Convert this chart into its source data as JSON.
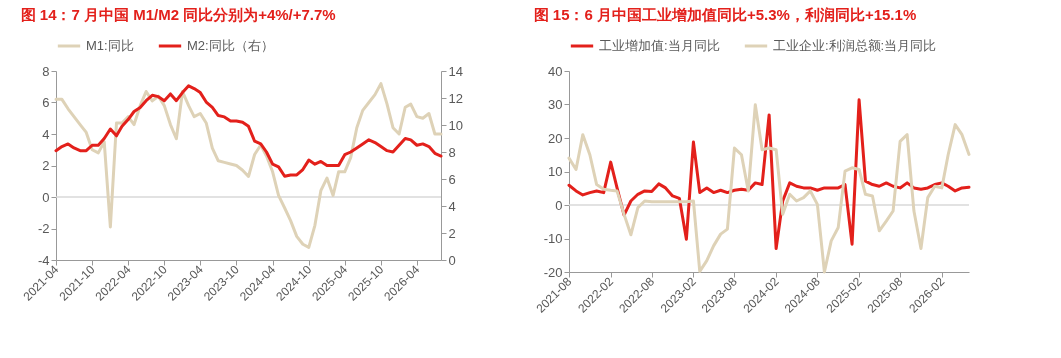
{
  "chart_data": [
    {
      "type": "line",
      "title": "图 14：7 月中国 M1/M2 同比分别为+4%/+7.7%",
      "legend": "top",
      "x": [
        "2021-04",
        "2021-05",
        "2021-06",
        "2021-07",
        "2021-08",
        "2021-09",
        "2021-10",
        "2021-11",
        "2021-12",
        "2022-01",
        "2022-02",
        "2022-03",
        "2022-04",
        "2022-05",
        "2022-06",
        "2022-07",
        "2022-08",
        "2022-09",
        "2022-10",
        "2022-11",
        "2022-12",
        "2023-01",
        "2023-02",
        "2023-03",
        "2023-04",
        "2023-05",
        "2023-06",
        "2023-07",
        "2023-08",
        "2023-09",
        "2023-10",
        "2023-11",
        "2023-12",
        "2024-01",
        "2024-02",
        "2024-03",
        "2024-04",
        "2024-05",
        "2024-06",
        "2024-07",
        "2024-08",
        "2024-09",
        "2024-10",
        "2024-11",
        "2024-12",
        "2025-01",
        "2025-02",
        "2025-03",
        "2025-04",
        "2025-05",
        "2025-06",
        "2025-07",
        "2025-08",
        "2025-09",
        "2025-10",
        "2025-11",
        "2025-12",
        "2026-01",
        "2026-02",
        "2026-03",
        "2026-04",
        "2026-05",
        "2026-06",
        "2026-07",
        "2026-08"
      ],
      "series": [
        {
          "name": "M1:同比",
          "color": "#ded2b7",
          "values": [
            6.2,
            6.2,
            5.6,
            5.1,
            4.6,
            4.1,
            3.0,
            2.8,
            3.5,
            -1.9,
            4.7,
            4.7,
            5.1,
            4.6,
            5.8,
            6.7,
            6.1,
            6.4,
            5.8,
            4.6,
            3.7,
            6.7,
            5.8,
            5.1,
            5.3,
            4.7,
            3.1,
            2.3,
            2.2,
            2.1,
            2.0,
            1.7,
            1.3,
            2.7,
            3.3,
            2.6,
            1.6,
            0.1,
            -0.7,
            -1.5,
            -2.5,
            -3.0,
            -3.2,
            -1.8,
            0.4,
            1.2,
            0.1,
            1.6,
            1.6,
            2.5,
            4.4,
            5.5,
            6.0,
            6.5,
            7.2,
            5.9,
            4.4,
            4.0,
            5.7,
            5.9,
            5.1,
            5.0,
            5.3,
            4.0,
            4.0
          ]
        },
        {
          "name": "M2:同比（右）",
          "color": "#e3201b",
          "axis": "y2",
          "values": [
            8.1,
            8.4,
            8.6,
            8.3,
            8.1,
            8.1,
            8.5,
            8.5,
            9.0,
            9.7,
            9.2,
            9.9,
            10.4,
            11.0,
            11.3,
            11.8,
            12.2,
            12.1,
            11.8,
            12.3,
            11.8,
            12.4,
            12.9,
            12.7,
            12.4,
            11.7,
            11.3,
            10.7,
            10.6,
            10.3,
            10.3,
            10.2,
            9.9,
            8.8,
            8.6,
            8.0,
            7.1,
            6.9,
            6.2,
            6.3,
            6.3,
            6.7,
            7.4,
            7.1,
            7.3,
            7.0,
            7.0,
            7.0,
            7.8,
            8.0,
            8.3,
            8.6,
            8.9,
            8.7,
            8.4,
            8.1,
            8.0,
            8.5,
            9.0,
            8.9,
            8.5,
            8.6,
            8.4,
            7.9,
            7.7
          ]
        }
      ],
      "xlim": [
        "2021-04",
        "2026-08"
      ],
      "xticks": [
        "2021-04",
        "2021-10",
        "2022-04",
        "2022-10",
        "2023-04",
        "2023-10",
        "2024-04",
        "2024-10",
        "2025-04",
        "2025-10",
        "2026-04"
      ],
      "ylim": [
        -4,
        8
      ],
      "yticks": [
        -4,
        -2,
        0,
        2,
        4,
        6,
        8
      ],
      "y2lim": [
        0,
        14
      ],
      "y2ticks": [
        0,
        2,
        4,
        6,
        8,
        10,
        12,
        14
      ],
      "ref_lines": [
        {
          "axis": "y",
          "value": 0,
          "color": "#d9d9d9"
        }
      ]
    },
    {
      "type": "line",
      "title": "图 15：6 月中国工业增加值同比+5.3%，利润同比+15.1%",
      "legend": "top",
      "x": [
        "2021-08",
        "2021-09",
        "2021-10",
        "2021-11",
        "2021-12",
        "2022-01",
        "2022-02",
        "2022-03",
        "2022-04",
        "2022-05",
        "2022-06",
        "2022-07",
        "2022-08",
        "2022-09",
        "2022-10",
        "2022-11",
        "2022-12",
        "2023-01",
        "2023-02",
        "2023-03",
        "2023-04",
        "2023-05",
        "2023-06",
        "2023-07",
        "2023-08",
        "2023-09",
        "2023-10",
        "2023-11",
        "2023-12",
        "2024-01",
        "2024-02",
        "2024-03",
        "2024-04",
        "2024-05",
        "2024-06",
        "2024-07",
        "2024-08",
        "2024-09",
        "2024-10",
        "2024-11",
        "2024-12",
        "2025-01",
        "2025-02",
        "2025-03",
        "2025-04",
        "2025-05",
        "2025-06",
        "2025-07",
        "2025-08",
        "2025-09",
        "2025-10",
        "2025-11",
        "2025-12",
        "2026-01",
        "2026-02",
        "2026-03",
        "2026-04",
        "2026-05",
        "2026-06"
      ],
      "series": [
        {
          "name": "工业增加值:当月同比",
          "color": "#e3201b",
          "values": [
            5.9,
            4.2,
            3.0,
            3.7,
            4.2,
            3.7,
            12.8,
            5.1,
            -3.0,
            1.2,
            3.2,
            4.2,
            4.0,
            6.3,
            5.1,
            2.7,
            2.0,
            -10.2,
            18.8,
            3.7,
            5.1,
            3.7,
            4.4,
            3.7,
            4.4,
            4.7,
            4.4,
            6.6,
            6.1,
            26.9,
            -13,
            1.2,
            6.6,
            5.6,
            5.1,
            5.1,
            4.4,
            5.1,
            5.1,
            5.1,
            6.1,
            -11.7,
            31.4,
            7.1,
            6.1,
            5.6,
            6.6,
            5.6,
            5.1,
            6.6,
            5.1,
            4.7,
            5.1,
            6.1,
            6.6,
            5.6,
            4.2,
            5.1,
            5.3
          ]
        },
        {
          "name": "工业企业:利润总额:当月同比",
          "color": "#ded2b7",
          "values": [
            14,
            10.6,
            21,
            15,
            6.1,
            4.7,
            4.4,
            4.2,
            -2.8,
            -8.9,
            -0.8,
            1.2,
            1,
            1,
            1,
            1,
            1,
            1,
            1.2,
            -19.8,
            -16.6,
            -12.2,
            -8.7,
            -7.2,
            17,
            15,
            4.2,
            29.9,
            16.5,
            17,
            16.5,
            -2.8,
            3.2,
            1.2,
            2.2,
            4.2,
            0.2,
            -20,
            -10.7,
            -6.7,
            10.1,
            11.1,
            10.6,
            3.2,
            2.7,
            -7.7,
            -4.8,
            -1.8,
            19,
            21,
            -1.8,
            -13,
            2.2,
            5.6,
            5.1,
            15,
            24,
            21,
            15.1
          ]
        }
      ],
      "xlim": [
        "2021-08",
        "2026-06"
      ],
      "xticks": [
        "2021-08",
        "2022-02",
        "2022-08",
        "2023-02",
        "2023-08",
        "2024-02",
        "2024-08",
        "2025-02",
        "2025-08",
        "2026-02"
      ],
      "ylim": [
        -20,
        40
      ],
      "yticks": [
        -20,
        -10,
        0,
        10,
        20,
        30,
        40
      ],
      "ref_lines": [
        {
          "axis": "y",
          "value": 0,
          "color": "#d9d9d9"
        }
      ]
    }
  ]
}
